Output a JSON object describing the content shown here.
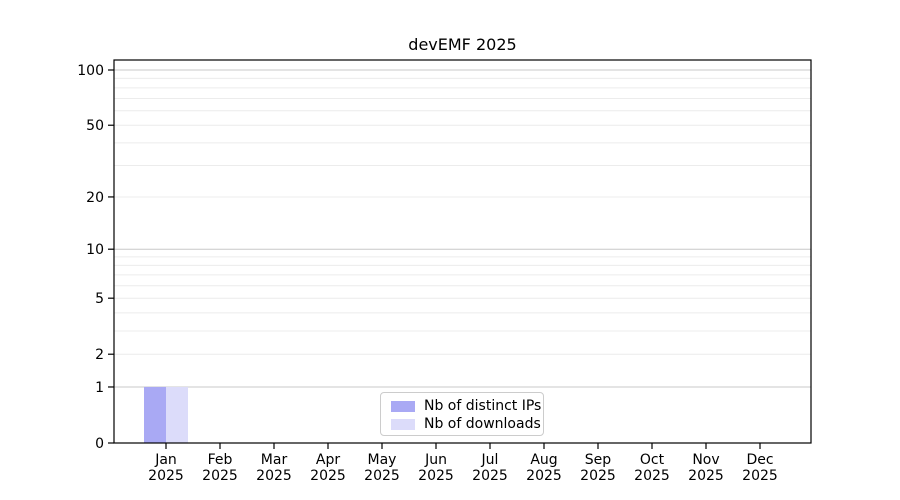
{
  "chart_data": {
    "type": "bar",
    "title": "devEMF 2025",
    "categories": [
      "Jan\n2025",
      "Feb\n2025",
      "Mar\n2025",
      "Apr\n2025",
      "May\n2025",
      "Jun\n2025",
      "Jul\n2025",
      "Aug\n2025",
      "Sep\n2025",
      "Oct\n2025",
      "Nov\n2025",
      "Dec\n2025"
    ],
    "series": [
      {
        "name": "Nb of distinct IPs",
        "color": "#a9a9f4",
        "values": [
          1,
          0,
          0,
          0,
          0,
          0,
          0,
          0,
          0,
          0,
          0,
          0
        ]
      },
      {
        "name": "Nb of downloads",
        "color": "#dcdcfa",
        "values": [
          1,
          0,
          0,
          0,
          0,
          0,
          0,
          0,
          0,
          0,
          0,
          0
        ]
      }
    ],
    "xlabel": "",
    "ylabel": "",
    "yscale": "log1p",
    "ylim": [
      0,
      114
    ],
    "y_ticks": [
      0,
      1,
      2,
      5,
      10,
      20,
      50,
      100
    ],
    "grid": {
      "major": [
        1,
        10,
        100
      ],
      "minor": [
        2,
        3,
        4,
        5,
        6,
        7,
        8,
        9,
        20,
        30,
        40,
        50,
        60,
        70,
        80,
        90
      ],
      "major_color": "#c8c8c8",
      "minor_color": "#ececec"
    },
    "legend": {
      "position": "bottom-center"
    },
    "axis_color": "#000000",
    "text_color": "#000000",
    "background": "#ffffff"
  }
}
